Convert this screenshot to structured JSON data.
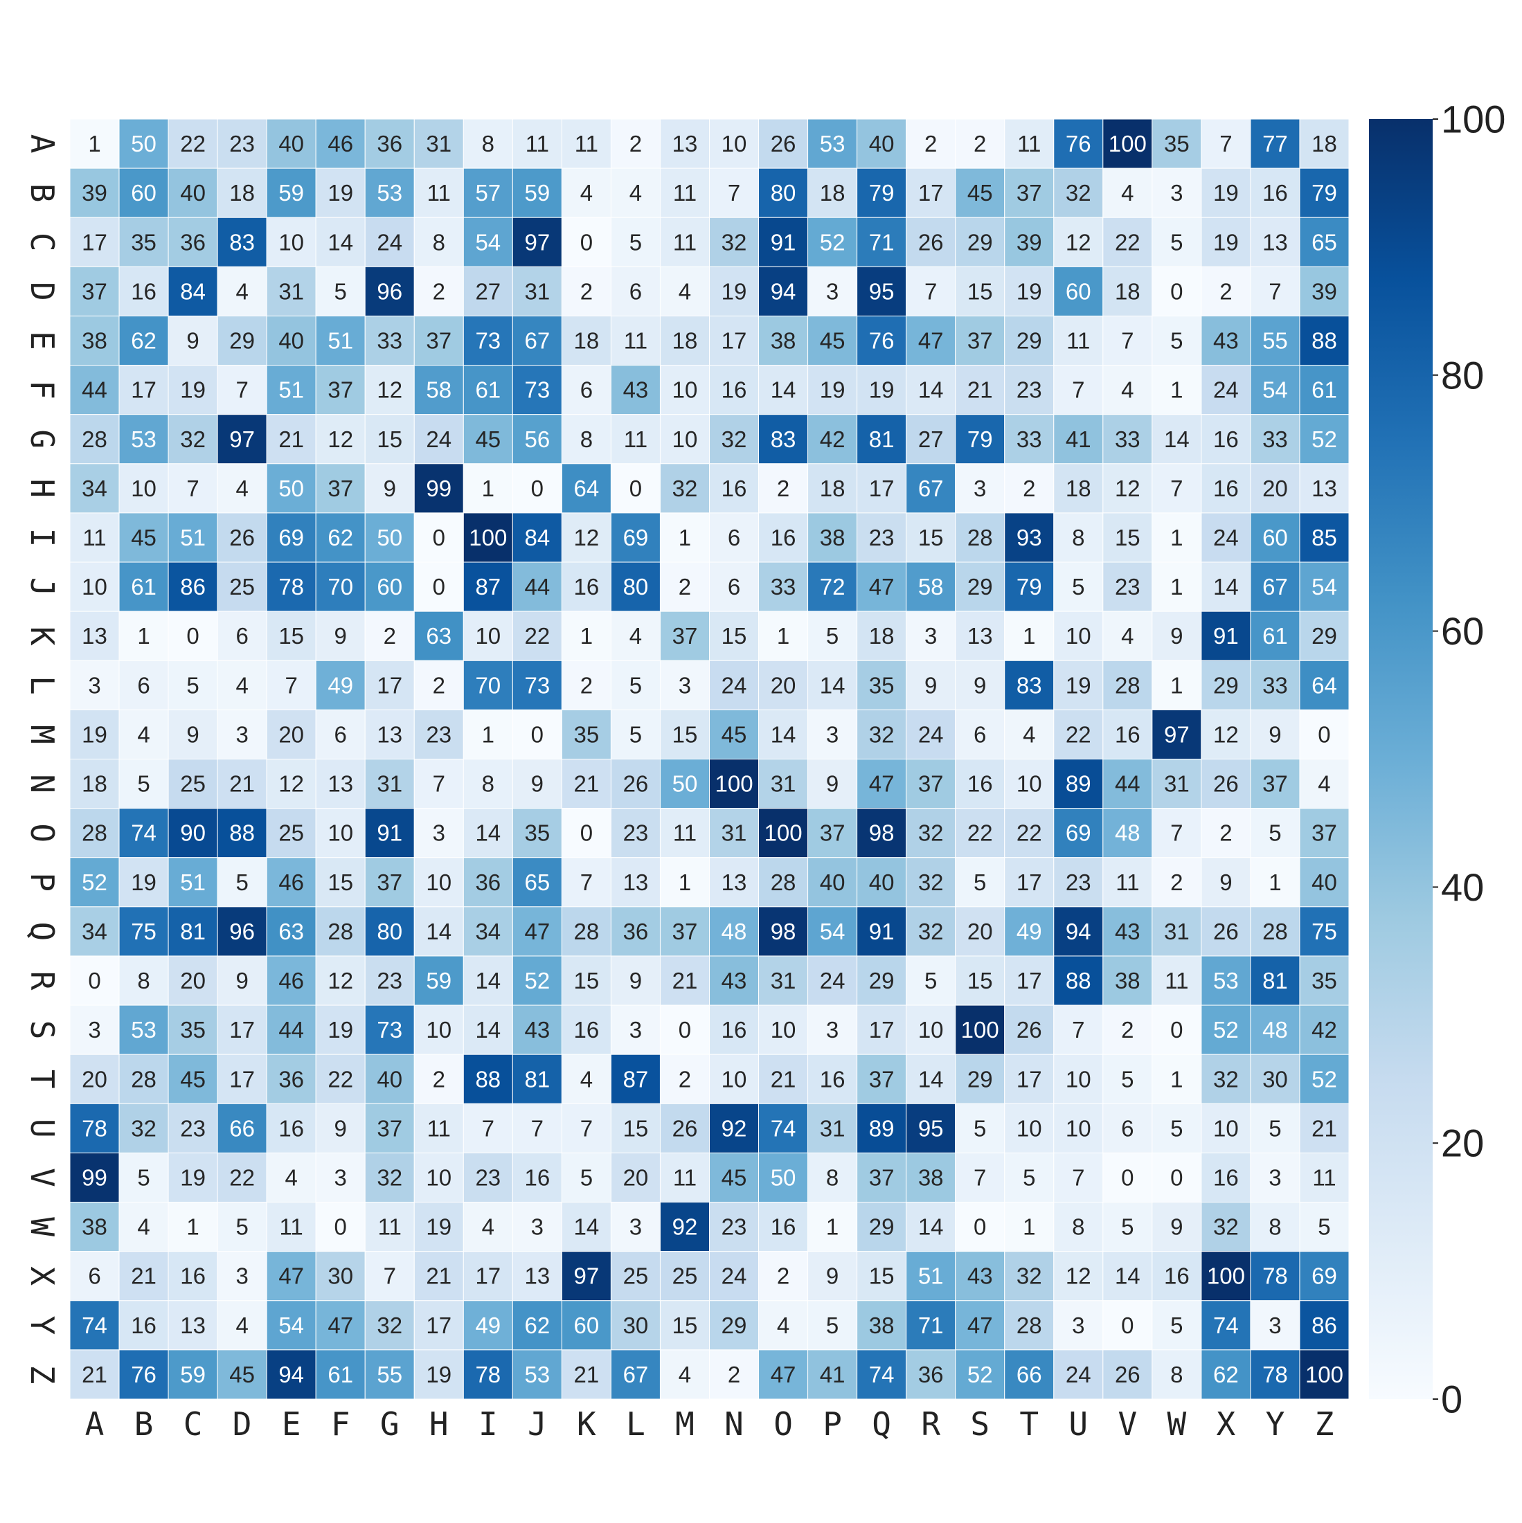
{
  "chart_data": {
    "type": "heatmap",
    "colormap": "Blues",
    "x": [
      "A",
      "B",
      "C",
      "D",
      "E",
      "F",
      "G",
      "H",
      "I",
      "J",
      "K",
      "L",
      "M",
      "N",
      "O",
      "P",
      "Q",
      "R",
      "S",
      "T",
      "U",
      "V",
      "W",
      "X",
      "Y",
      "Z"
    ],
    "y": [
      "A",
      "B",
      "C",
      "D",
      "E",
      "F",
      "G",
      "H",
      "I",
      "J",
      "K",
      "L",
      "M",
      "N",
      "O",
      "P",
      "Q",
      "R",
      "S",
      "T",
      "U",
      "V",
      "W",
      "X",
      "Y",
      "Z"
    ],
    "values": [
      [
        1,
        50,
        22,
        23,
        40,
        46,
        36,
        31,
        8,
        11,
        11,
        2,
        13,
        10,
        26,
        53,
        40,
        2,
        2,
        11,
        76,
        100,
        35,
        7,
        77,
        18
      ],
      [
        39,
        60,
        40,
        18,
        59,
        19,
        53,
        11,
        57,
        59,
        4,
        4,
        11,
        7,
        80,
        18,
        79,
        17,
        45,
        37,
        32,
        4,
        3,
        19,
        16,
        79
      ],
      [
        17,
        35,
        36,
        83,
        10,
        14,
        24,
        8,
        54,
        97,
        0,
        5,
        11,
        32,
        91,
        52,
        71,
        26,
        29,
        39,
        12,
        22,
        5,
        19,
        13,
        65
      ],
      [
        37,
        16,
        84,
        4,
        31,
        5,
        96,
        2,
        27,
        31,
        2,
        6,
        4,
        19,
        94,
        3,
        95,
        7,
        15,
        19,
        60,
        18,
        0,
        2,
        7,
        39
      ],
      [
        38,
        62,
        9,
        29,
        40,
        51,
        33,
        37,
        73,
        67,
        18,
        11,
        18,
        17,
        38,
        45,
        76,
        47,
        37,
        29,
        11,
        7,
        5,
        43,
        55,
        88
      ],
      [
        44,
        17,
        19,
        7,
        51,
        37,
        12,
        58,
        61,
        73,
        6,
        43,
        10,
        16,
        14,
        19,
        19,
        14,
        21,
        23,
        7,
        4,
        1,
        24,
        54,
        61
      ],
      [
        28,
        53,
        32,
        97,
        21,
        12,
        15,
        24,
        45,
        56,
        8,
        11,
        10,
        32,
        83,
        42,
        81,
        27,
        79,
        33,
        41,
        33,
        14,
        16,
        33,
        52
      ],
      [
        34,
        10,
        7,
        4,
        50,
        37,
        9,
        99,
        1,
        0,
        64,
        0,
        32,
        16,
        2,
        18,
        17,
        67,
        3,
        2,
        18,
        12,
        7,
        16,
        20,
        13
      ],
      [
        11,
        45,
        51,
        26,
        69,
        62,
        50,
        0,
        100,
        84,
        12,
        69,
        1,
        6,
        16,
        38,
        23,
        15,
        28,
        93,
        8,
        15,
        1,
        24,
        60,
        85
      ],
      [
        10,
        61,
        86,
        25,
        78,
        70,
        60,
        0,
        87,
        44,
        16,
        80,
        2,
        6,
        33,
        72,
        47,
        58,
        29,
        79,
        5,
        23,
        1,
        14,
        67,
        54
      ],
      [
        13,
        1,
        0,
        6,
        15,
        9,
        2,
        63,
        10,
        22,
        1,
        4,
        37,
        15,
        1,
        5,
        18,
        3,
        13,
        1,
        10,
        4,
        9,
        91,
        61,
        29
      ],
      [
        3,
        6,
        5,
        4,
        7,
        49,
        17,
        2,
        70,
        73,
        2,
        5,
        3,
        24,
        20,
        14,
        35,
        9,
        9,
        83,
        19,
        28,
        1,
        29,
        33,
        64
      ],
      [
        19,
        4,
        9,
        3,
        20,
        6,
        13,
        23,
        1,
        0,
        35,
        5,
        15,
        45,
        14,
        3,
        32,
        24,
        6,
        4,
        22,
        16,
        97,
        12,
        9,
        0
      ],
      [
        18,
        5,
        25,
        21,
        12,
        13,
        31,
        7,
        8,
        9,
        21,
        26,
        50,
        100,
        31,
        9,
        47,
        37,
        16,
        10,
        89,
        44,
        31,
        26,
        37,
        4
      ],
      [
        28,
        74,
        90,
        88,
        25,
        10,
        91,
        3,
        14,
        35,
        0,
        23,
        11,
        31,
        100,
        37,
        98,
        32,
        22,
        22,
        69,
        48,
        7,
        2,
        5,
        37
      ],
      [
        52,
        19,
        51,
        5,
        46,
        15,
        37,
        10,
        36,
        65,
        7,
        13,
        1,
        13,
        28,
        40,
        40,
        32,
        5,
        17,
        23,
        11,
        2,
        9,
        1,
        40
      ],
      [
        34,
        75,
        81,
        96,
        63,
        28,
        80,
        14,
        34,
        47,
        28,
        36,
        37,
        48,
        98,
        54,
        91,
        32,
        20,
        49,
        94,
        43,
        31,
        26,
        28,
        75
      ],
      [
        0,
        8,
        20,
        9,
        46,
        12,
        23,
        59,
        14,
        52,
        15,
        9,
        21,
        43,
        31,
        24,
        29,
        5,
        15,
        17,
        88,
        38,
        11,
        53,
        81,
        35
      ],
      [
        3,
        53,
        35,
        17,
        44,
        19,
        73,
        10,
        14,
        43,
        16,
        3,
        0,
        16,
        10,
        3,
        17,
        10,
        100,
        26,
        7,
        2,
        0,
        52,
        48,
        42
      ],
      [
        20,
        28,
        45,
        17,
        36,
        22,
        40,
        2,
        88,
        81,
        4,
        87,
        2,
        10,
        21,
        16,
        37,
        14,
        29,
        17,
        10,
        5,
        1,
        32,
        30,
        52
      ],
      [
        78,
        32,
        23,
        66,
        16,
        9,
        37,
        11,
        7,
        7,
        7,
        15,
        26,
        92,
        74,
        31,
        89,
        95,
        5,
        10,
        10,
        6,
        5,
        10,
        5,
        21
      ],
      [
        99,
        5,
        19,
        22,
        4,
        3,
        32,
        10,
        23,
        16,
        5,
        20,
        11,
        45,
        50,
        8,
        37,
        38,
        7,
        5,
        7,
        0,
        0,
        16,
        3,
        11
      ],
      [
        38,
        4,
        1,
        5,
        11,
        0,
        11,
        19,
        4,
        3,
        14,
        3,
        92,
        23,
        16,
        1,
        29,
        14,
        0,
        1,
        8,
        5,
        9,
        32,
        8,
        5
      ],
      [
        6,
        21,
        16,
        3,
        47,
        30,
        7,
        21,
        17,
        13,
        97,
        25,
        25,
        24,
        2,
        9,
        15,
        51,
        43,
        32,
        12,
        14,
        16,
        100,
        78,
        69
      ],
      [
        74,
        16,
        13,
        4,
        54,
        47,
        32,
        17,
        49,
        62,
        60,
        30,
        15,
        29,
        4,
        5,
        38,
        71,
        47,
        28,
        3,
        0,
        5,
        74,
        3,
        86
      ],
      [
        21,
        76,
        59,
        45,
        94,
        61,
        55,
        19,
        78,
        53,
        21,
        67,
        4,
        2,
        47,
        41,
        74,
        36,
        52,
        66,
        24,
        26,
        8,
        62,
        78,
        100
      ]
    ],
    "zlim": [
      0,
      100
    ],
    "zticks": [
      0,
      20,
      40,
      60,
      80,
      100
    ]
  }
}
